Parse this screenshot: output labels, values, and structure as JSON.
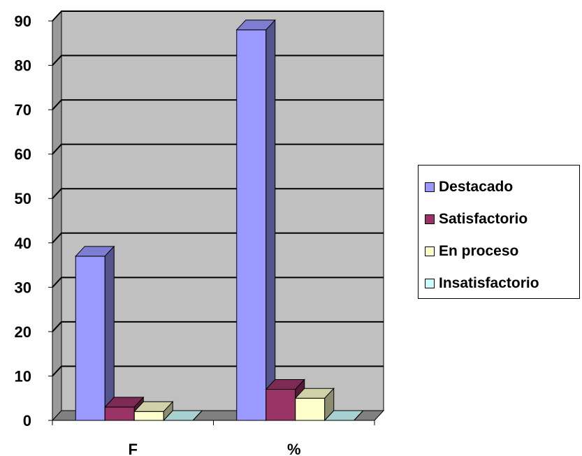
{
  "chart_data": {
    "type": "bar",
    "categories": [
      "F",
      "%"
    ],
    "series": [
      {
        "name": "Destacado",
        "values": [
          37,
          88
        ],
        "color": "#9999ff"
      },
      {
        "name": "Satisfactorio",
        "values": [
          3,
          7
        ],
        "color": "#993366"
      },
      {
        "name": "En proceso",
        "values": [
          2,
          5
        ],
        "color": "#ffffcc"
      },
      {
        "name": "Insatisfactorio",
        "values": [
          0,
          0
        ],
        "color": "#ccffff"
      }
    ],
    "yticks": [
      0,
      10,
      20,
      30,
      40,
      50,
      60,
      70,
      80,
      90
    ],
    "ylim": [
      0,
      90
    ],
    "grid": true,
    "legend": "right",
    "three_d": true,
    "background_color": "#c0c0c0"
  }
}
